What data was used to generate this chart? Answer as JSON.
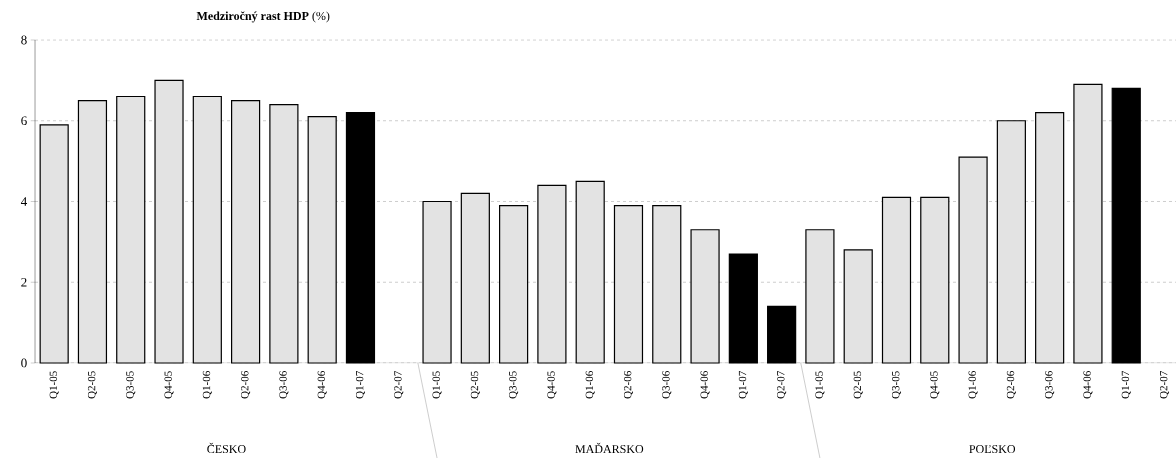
{
  "chart_data": {
    "type": "bar",
    "title": "**Medziročný  rast HDP** (%)",
    "categories": [
      "Q1-05",
      "Q2-05",
      "Q3-05",
      "Q4-05",
      "Q1-06",
      "Q2-06",
      "Q3-06",
      "Q4-06",
      "Q1-07",
      "Q2-07",
      "Q1-05",
      "Q2-05",
      "Q3-05",
      "Q4-05",
      "Q1-06",
      "Q2-06",
      "Q3-06",
      "Q4-06",
      "Q1-07",
      "Q2-07",
      "Q1-05",
      "Q2-05",
      "Q3-05",
      "Q4-05",
      "Q1-06",
      "Q2-06",
      "Q3-06",
      "Q4-06",
      "Q1-07",
      "Q2-07"
    ],
    "values": [
      5.9,
      6.5,
      6.6,
      7.0,
      6.6,
      6.5,
      6.4,
      6.1,
      6.2,
      null,
      4.0,
      4.2,
      3.9,
      4.4,
      4.5,
      3.9,
      3.9,
      3.3,
      2.7,
      1.4,
      3.3,
      2.8,
      4.1,
      4.1,
      5.1,
      6.0,
      6.2,
      6.9,
      6.8,
      null
    ],
    "colors": [
      "#e3e3e3",
      "#e3e3e3",
      "#e3e3e3",
      "#e3e3e3",
      "#e3e3e3",
      "#e3e3e3",
      "#e3e3e3",
      "#e3e3e3",
      "#000000",
      "#000000",
      "#e3e3e3",
      "#e3e3e3",
      "#e3e3e3",
      "#e3e3e3",
      "#e3e3e3",
      "#e3e3e3",
      "#e3e3e3",
      "#e3e3e3",
      "#000000",
      "#000000",
      "#e3e3e3",
      "#e3e3e3",
      "#e3e3e3",
      "#e3e3e3",
      "#e3e3e3",
      "#e3e3e3",
      "#e3e3e3",
      "#e3e3e3",
      "#000000",
      "#000000"
    ],
    "ylim": [
      0,
      8
    ],
    "yticks": [
      0,
      2,
      4,
      6,
      8
    ],
    "grid": "y",
    "annotations": [
      "ČESKO",
      "MAĎARSKO",
      "POĽSKO"
    ]
  }
}
